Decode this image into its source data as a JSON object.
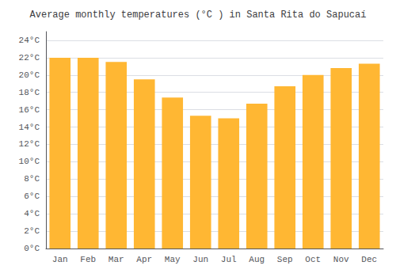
{
  "chart_data": {
    "type": "bar",
    "title": "Average monthly temperatures (°C ) in Santa Rita do Sapucaí",
    "categories": [
      "Jan",
      "Feb",
      "Mar",
      "Apr",
      "May",
      "Jun",
      "Jul",
      "Aug",
      "Sep",
      "Oct",
      "Nov",
      "Dec"
    ],
    "values": [
      22.0,
      22.0,
      21.5,
      19.5,
      17.4,
      15.3,
      15.0,
      16.7,
      18.7,
      20.0,
      20.8,
      21.3
    ],
    "color": "#FFB733",
    "ylim": [
      0,
      25
    ],
    "yticks": [
      {
        "value": 0,
        "label": "0°C"
      },
      {
        "value": 2,
        "label": "2°C"
      },
      {
        "value": 4,
        "label": "4°C"
      },
      {
        "value": 6,
        "label": "6°C"
      },
      {
        "value": 8,
        "label": "8°C"
      },
      {
        "value": 10,
        "label": "10°C"
      },
      {
        "value": 12,
        "label": "12°C"
      },
      {
        "value": 14,
        "label": "14°C"
      },
      {
        "value": 16,
        "label": "16°C"
      },
      {
        "value": 18,
        "label": "18°C"
      },
      {
        "value": 20,
        "label": "20°C"
      },
      {
        "value": 22,
        "label": "22°C"
      },
      {
        "value": 24,
        "label": "24°C"
      }
    ],
    "grid": true
  }
}
